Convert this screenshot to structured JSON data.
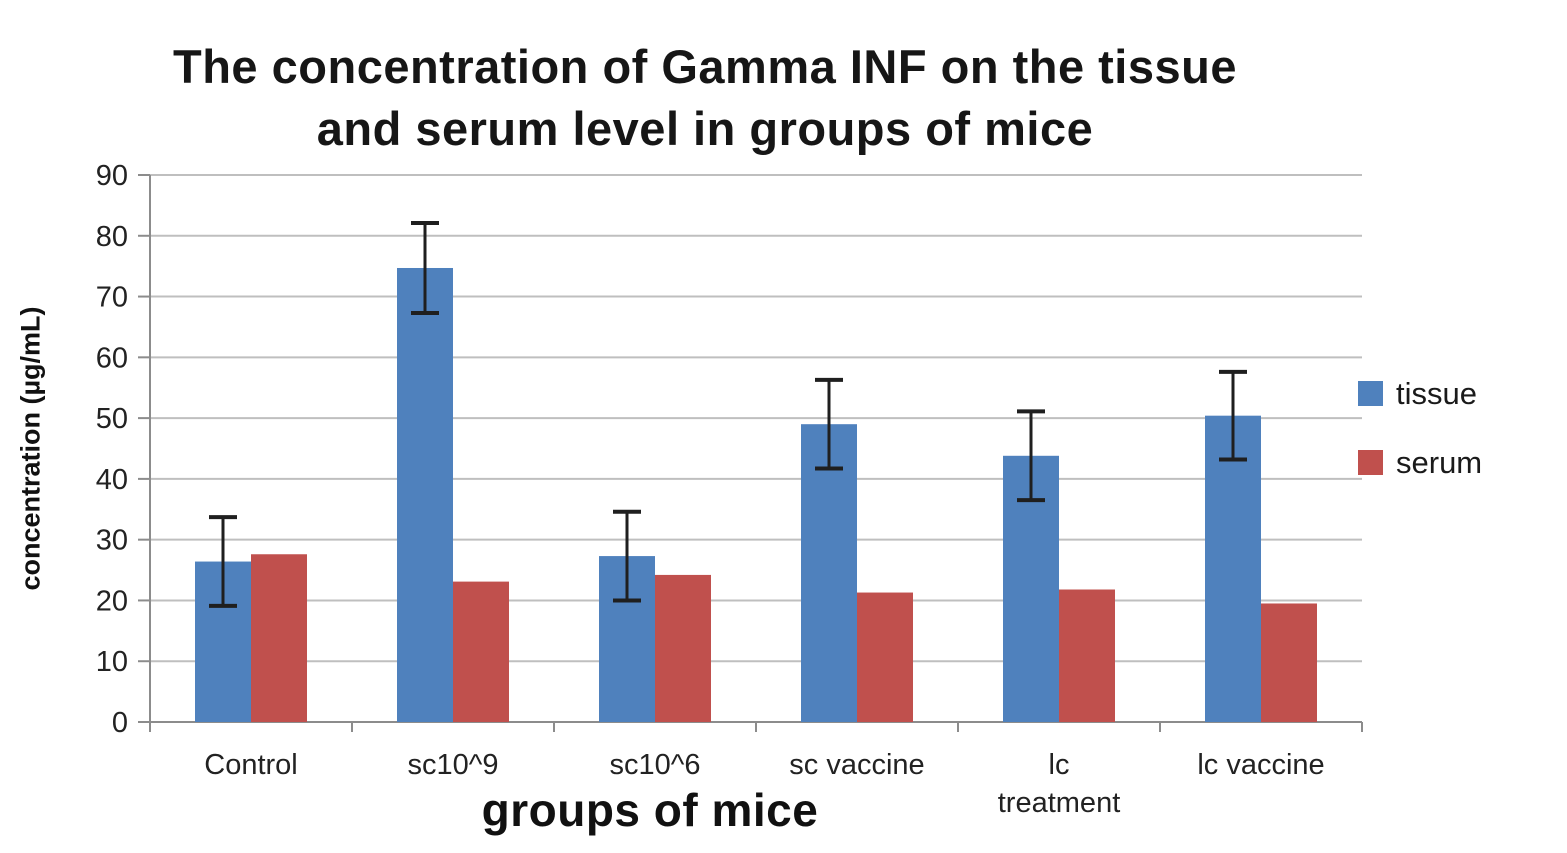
{
  "chart_data": {
    "type": "bar",
    "title": "The concentration of Gamma INF on the tissue and serum level in groups of mice",
    "title_line1": "The concentration of Gamma INF on the tissue",
    "title_line2": "and serum level in groups of mice",
    "xlabel": "groups of mice",
    "ylabel": "concentration (µg/mL)",
    "ylim": [
      0,
      90
    ],
    "yticks": [
      0,
      10,
      20,
      30,
      40,
      50,
      60,
      70,
      80,
      90
    ],
    "grid": true,
    "legend_position": "right",
    "categories": [
      "Control",
      "sc10^9",
      "sc10^6",
      "sc vaccine",
      "lc treatment",
      "lc vaccine"
    ],
    "category_label_lines": [
      [
        "Control"
      ],
      [
        "sc10^9"
      ],
      [
        "sc10^6"
      ],
      [
        "sc vaccine"
      ],
      [
        "lc",
        "treatment"
      ],
      [
        "lc vaccine"
      ]
    ],
    "series": [
      {
        "name": "tissue",
        "color": "#4F81BD",
        "values": [
          26.4,
          74.7,
          27.3,
          49.0,
          43.8,
          50.4
        ],
        "errors": [
          7.3,
          7.4,
          7.3,
          7.3,
          7.3,
          7.2
        ]
      },
      {
        "name": "serum",
        "color": "#C0504D",
        "values": [
          27.6,
          23.1,
          24.2,
          21.3,
          21.8,
          19.5
        ],
        "errors": null
      }
    ],
    "colors": {
      "gridline": "#BFBFBF",
      "axis": "#8C8C8C",
      "error_bar": "#1f1f1f",
      "tick_text": "#222222"
    }
  }
}
